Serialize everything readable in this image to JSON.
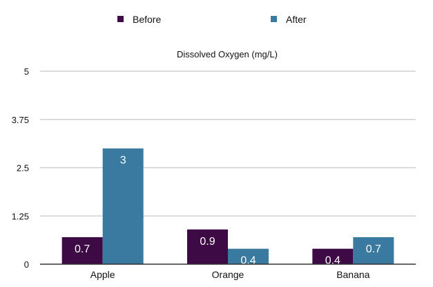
{
  "chart_data": {
    "type": "bar",
    "title": "Dissolved Oxygen (mg/L)",
    "categories": [
      "Apple",
      "Orange",
      "Banana"
    ],
    "series": [
      {
        "name": "Before",
        "values": [
          0.7,
          0.9,
          0.4
        ],
        "labels": [
          "0.7",
          "0.9",
          "0.4"
        ],
        "color": "#3d0a45"
      },
      {
        "name": "After",
        "values": [
          3,
          0.4,
          0.7
        ],
        "labels": [
          "3",
          "0.4",
          "0.7"
        ],
        "color": "#3a7aa0"
      }
    ],
    "yticks": [
      "0",
      "1.25",
      "2.5",
      "3.75",
      "5"
    ],
    "ylim": [
      0,
      5
    ],
    "grid": true,
    "legend_position": "top"
  }
}
